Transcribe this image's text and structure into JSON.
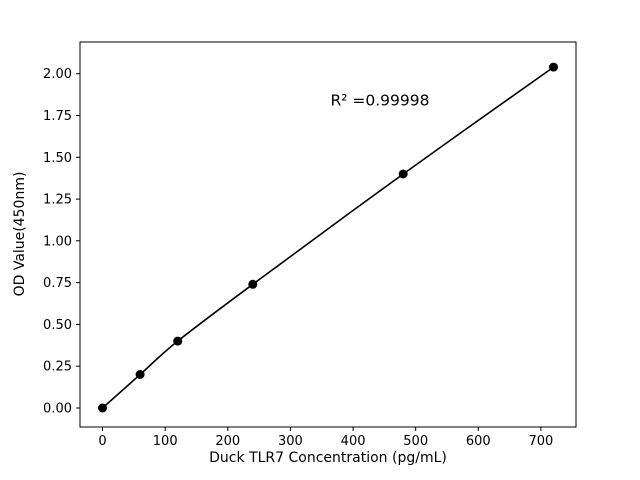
{
  "figure": {
    "background": "#ffffff",
    "foreground": "#000000"
  },
  "chart_data": {
    "type": "scatter",
    "title": "",
    "xlabel": "Duck TLR7 Concentration (pg/mL)",
    "ylabel": "OD Value(450nm)",
    "x": [
      0,
      60,
      120,
      240,
      480,
      720
    ],
    "y": [
      0.0,
      0.2,
      0.4,
      0.74,
      1.4,
      2.04
    ],
    "xlim": [
      -36,
      756
    ],
    "ylim": [
      -0.114,
      2.19
    ],
    "xticks": {
      "values": [
        0,
        100,
        200,
        300,
        400,
        500,
        600,
        700
      ],
      "labels": [
        "0",
        "100",
        "200",
        "300",
        "400",
        "500",
        "600",
        "700"
      ]
    },
    "yticks": {
      "values": [
        0.0,
        0.25,
        0.5,
        0.75,
        1.0,
        1.25,
        1.5,
        1.75,
        2.0
      ],
      "labels": [
        "0.00",
        "0.25",
        "0.50",
        "0.75",
        "1.00",
        "1.25",
        "1.50",
        "1.75",
        "2.00"
      ]
    },
    "annotation": {
      "text": "R² =0.99998",
      "x": 443,
      "y": 1.84
    },
    "line_color": "#000000",
    "marker_color": "#000000",
    "grid": false,
    "legend": null
  }
}
